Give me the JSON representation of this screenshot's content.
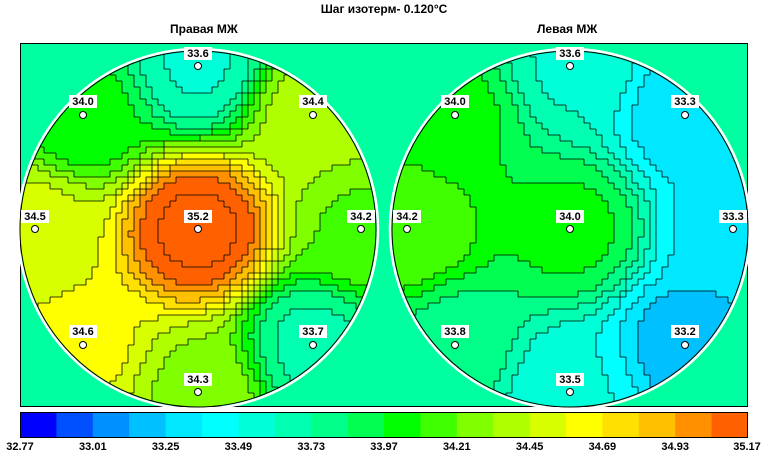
{
  "chart_data": {
    "type": "heatmap",
    "title": "Шаг изотерм- 0.120°С",
    "panels": [
      {
        "name": "Правая МЖ",
        "probes": [
          {
            "label": "33.6",
            "value": 33.6
          },
          {
            "label": "34.0",
            "value": 34.0
          },
          {
            "label": "34.4",
            "value": 34.4
          },
          {
            "label": "34.5",
            "value": 34.5
          },
          {
            "label": "35.2",
            "value": 35.2
          },
          {
            "label": "34.2",
            "value": 34.2
          },
          {
            "label": "34.6",
            "value": 34.6
          },
          {
            "label": "33.7",
            "value": 33.7
          },
          {
            "label": "34.3",
            "value": 34.3
          }
        ]
      },
      {
        "name": "Левая МЖ",
        "probes": [
          {
            "label": "33.6",
            "value": 33.6
          },
          {
            "label": "34.0",
            "value": 34.0
          },
          {
            "label": "33.3",
            "value": 33.3
          },
          {
            "label": "34.2",
            "value": 34.2
          },
          {
            "label": "34.0",
            "value": 34.0
          },
          {
            "label": "33.3",
            "value": 33.3
          },
          {
            "label": "33.8",
            "value": 33.8
          },
          {
            "label": "33.2",
            "value": 33.2
          },
          {
            "label": "33.5",
            "value": 33.5
          }
        ]
      }
    ],
    "isotherm_step": 0.12,
    "colorbar": {
      "min": 32.77,
      "max": 35.17,
      "tick_labels": [
        "32.77",
        "33.01",
        "33.25",
        "33.49",
        "33.73",
        "33.97",
        "34.21",
        "34.45",
        "34.69",
        "34.93",
        "35.17"
      ],
      "colors": [
        "#0000ff",
        "#0050ff",
        "#0090ff",
        "#00c0ff",
        "#00e8ff",
        "#00ffff",
        "#00ffd8",
        "#00ffb0",
        "#00ff88",
        "#00ff50",
        "#00ff00",
        "#40ff00",
        "#80ff00",
        "#b0ff00",
        "#d8ff00",
        "#ffff00",
        "#ffe000",
        "#ffc000",
        "#ff9000",
        "#ff6000"
      ]
    }
  }
}
